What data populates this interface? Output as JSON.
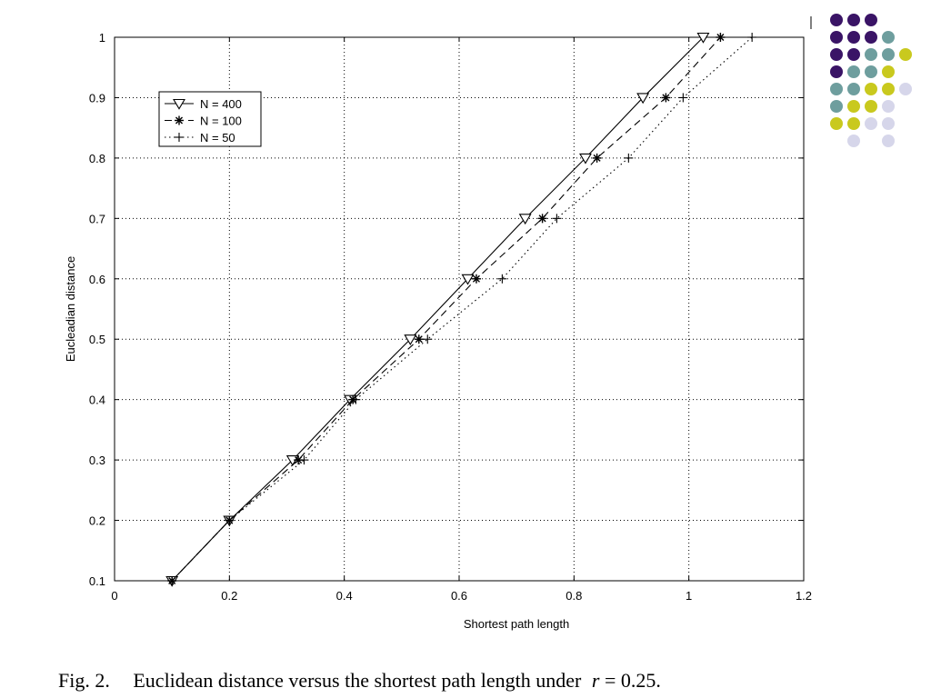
{
  "caption": {
    "label": "Fig. 2.",
    "text": "Euclidean distance versus the shortest path length under",
    "math_var": "r",
    "math_rest": " = 0.25."
  },
  "decoration": {
    "dot_colors": {
      "purple": "#3a1466",
      "teal": "#6e9e9e",
      "yellow": "#c9c91e",
      "lavender": "#d6d6ea"
    }
  },
  "chart_data": {
    "type": "line",
    "xlabel": "Shortest path length",
    "ylabel": "Eucleadian distance",
    "xlim": [
      0,
      1.2
    ],
    "ylim": [
      0.1,
      1
    ],
    "xticks": [
      0,
      0.2,
      0.4,
      0.6,
      0.8,
      1,
      1.2
    ],
    "yticks": [
      0.1,
      0.2,
      0.3,
      0.4,
      0.5,
      0.6,
      0.7,
      0.8,
      0.9,
      1
    ],
    "grid": true,
    "legend_position": "top-left",
    "series": [
      {
        "name": "N = 400",
        "marker": "triangle-down",
        "line": "solid",
        "x": [
          0.1,
          0.2,
          0.31,
          0.41,
          0.515,
          0.615,
          0.715,
          0.82,
          0.92,
          1.025
        ],
        "y": [
          0.1,
          0.2,
          0.3,
          0.4,
          0.5,
          0.6,
          0.7,
          0.8,
          0.9,
          1
        ]
      },
      {
        "name": "N = 100",
        "marker": "asterisk",
        "line": "dashed",
        "x": [
          0.1,
          0.2,
          0.32,
          0.415,
          0.53,
          0.63,
          0.745,
          0.84,
          0.96,
          1.055
        ],
        "y": [
          0.1,
          0.2,
          0.3,
          0.4,
          0.5,
          0.6,
          0.7,
          0.8,
          0.9,
          1
        ]
      },
      {
        "name": "N = 50",
        "marker": "plus",
        "line": "dotted",
        "x": [
          0.1,
          0.2,
          0.33,
          0.42,
          0.545,
          0.675,
          0.77,
          0.895,
          0.99,
          1.11
        ],
        "y": [
          0.1,
          0.2,
          0.3,
          0.4,
          0.5,
          0.6,
          0.7,
          0.8,
          0.9,
          1
        ]
      }
    ]
  }
}
